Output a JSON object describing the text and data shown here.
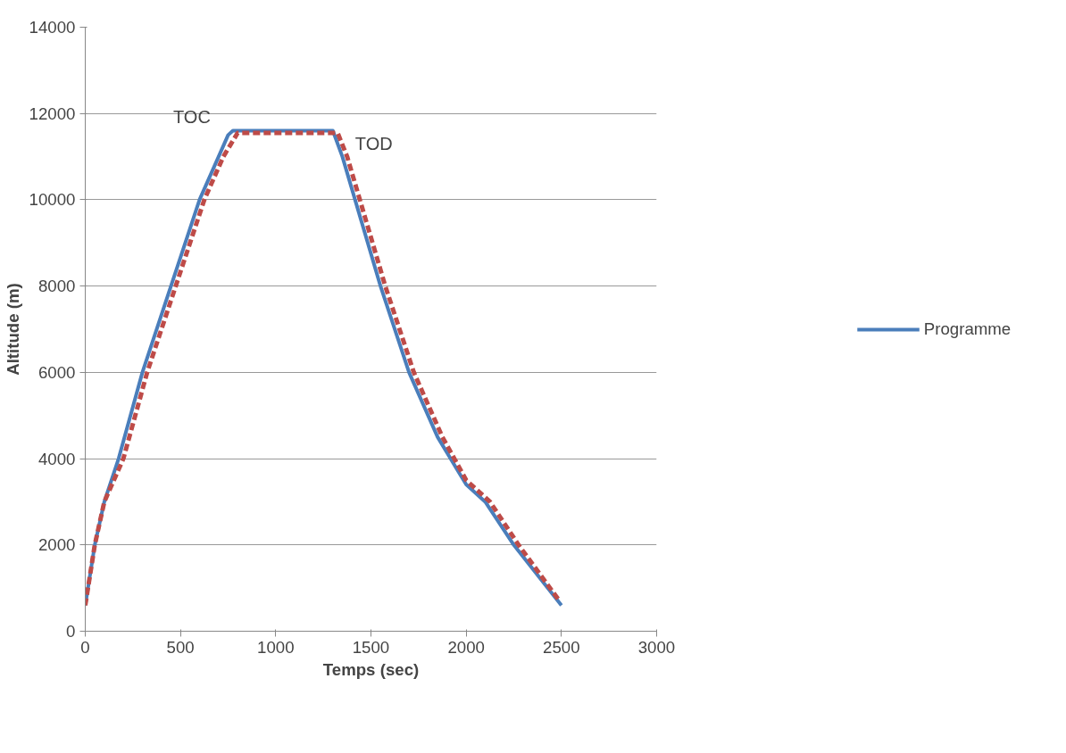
{
  "chart_data": {
    "type": "line",
    "xlabel": "Temps (sec)",
    "ylabel": "Altitude (m)",
    "xlim": [
      0,
      3000
    ],
    "xticks": [
      0,
      500,
      1000,
      1500,
      2000,
      2500,
      3000
    ],
    "ylim": [
      0,
      14000
    ],
    "yticks": [
      0,
      2000,
      4000,
      6000,
      8000,
      10000,
      12000,
      14000
    ],
    "grid": "y",
    "legend": "right",
    "marker": "none",
    "annotations": [
      "TOC",
      "TOD"
    ],
    "series": [
      {
        "name": "Programme",
        "color": "#4a7ebb",
        "line_style": "solid",
        "x": [
          0,
          50,
          100,
          175,
          300,
          450,
          600,
          700,
          750,
          775,
          1300,
          1350,
          1450,
          1550,
          1700,
          1850,
          2000,
          2100,
          2250,
          2500
        ],
        "values": [
          600,
          2000,
          3000,
          4000,
          6000,
          8000,
          10000,
          11000,
          11500,
          11600,
          11600,
          11000,
          9500,
          8000,
          6000,
          4500,
          3400,
          3000,
          2000,
          600
        ]
      },
      {
        "color": "#be4b48",
        "line_style": "dashed",
        "x": [
          0,
          50,
          100,
          200,
          325,
          475,
          625,
          725,
          800,
          1325,
          1375,
          1475,
          1575,
          1725,
          1875,
          2000,
          2125,
          2275,
          2490
        ],
        "values": [
          600,
          2000,
          3000,
          4000,
          6000,
          8000,
          10000,
          11000,
          11550,
          11550,
          11000,
          9500,
          8000,
          6000,
          4500,
          3500,
          3000,
          2000,
          700
        ]
      }
    ]
  }
}
